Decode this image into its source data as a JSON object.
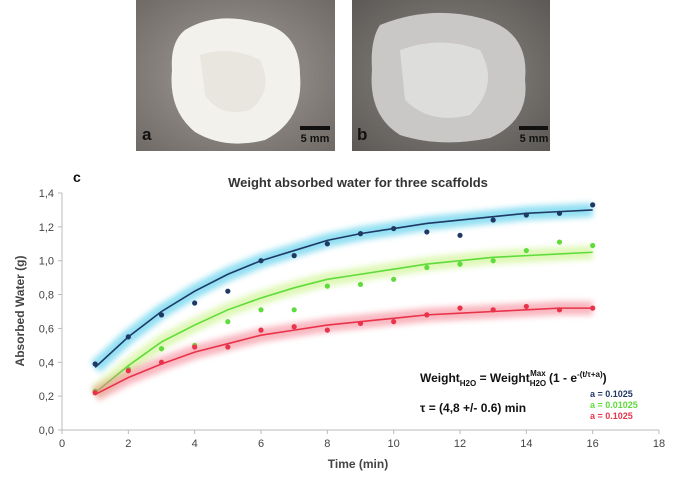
{
  "panels": [
    {
      "label": "a",
      "scale": "5 mm"
    },
    {
      "label": "b",
      "scale": "5 mm"
    }
  ],
  "chart_label": "c",
  "chart_data": {
    "type": "scatter",
    "title": "Weight absorbed water  for three scaffolds",
    "x_label": "Time  (min)",
    "y_label": "Absorbed Water (g)",
    "x": [
      1,
      2,
      3,
      4,
      5,
      6,
      7,
      8,
      9,
      10,
      11,
      12,
      13,
      14,
      15,
      16
    ],
    "series": [
      {
        "color": "#1f3864",
        "glow": "#38c6e8",
        "values": [
          0.39,
          0.55,
          0.68,
          0.75,
          0.82,
          1.0,
          1.03,
          1.1,
          1.16,
          1.19,
          1.17,
          1.15,
          1.24,
          1.27,
          1.28,
          1.33
        ],
        "fit": [
          0.37,
          0.55,
          0.7,
          0.82,
          0.92,
          1.0,
          1.06,
          1.12,
          1.16,
          1.19,
          1.22,
          1.24,
          1.26,
          1.28,
          1.29,
          1.3
        ]
      },
      {
        "color": "#5fdc3c",
        "glow": "#c4f27c",
        "values": [
          0.23,
          0.36,
          0.48,
          0.5,
          0.64,
          0.71,
          0.71,
          0.85,
          0.86,
          0.89,
          0.96,
          0.98,
          1.0,
          1.06,
          1.11,
          1.09
        ],
        "fit": [
          0.22,
          0.38,
          0.52,
          0.62,
          0.71,
          0.78,
          0.84,
          0.89,
          0.92,
          0.95,
          0.98,
          1.0,
          1.02,
          1.03,
          1.04,
          1.05
        ]
      },
      {
        "color": "#e8334a",
        "glow": "#f47c8c",
        "values": [
          0.22,
          0.35,
          0.4,
          0.49,
          0.49,
          0.59,
          0.61,
          0.59,
          0.63,
          0.64,
          0.68,
          0.72,
          0.71,
          0.73,
          0.71,
          0.72
        ],
        "fit": [
          0.21,
          0.31,
          0.39,
          0.46,
          0.51,
          0.56,
          0.59,
          0.62,
          0.64,
          0.66,
          0.68,
          0.69,
          0.7,
          0.71,
          0.72,
          0.72
        ]
      }
    ],
    "xlim": [
      0,
      18
    ],
    "xticks": [
      0,
      2,
      4,
      6,
      8,
      10,
      12,
      14,
      16,
      18
    ],
    "ylim": [
      0,
      1.4
    ],
    "yticks": [
      {
        "value": 0,
        "label": "0,0"
      },
      {
        "value": 0.2,
        "label": "0,2"
      },
      {
        "value": 0.4,
        "label": "0,4"
      },
      {
        "value": 0.6,
        "label": "0,6"
      },
      {
        "value": 0.8,
        "label": "0,8"
      },
      {
        "value": 1.0,
        "label": "1,0"
      },
      {
        "value": 1.2,
        "label": "1,2"
      },
      {
        "value": 1.4,
        "label": "1,4"
      }
    ],
    "formula": [
      "Weight",
      "H2O",
      " = Weight",
      "H2O",
      "Max",
      " (1 - e",
      "-(t/τ+a)",
      ")"
    ],
    "tau": "τ = (4,8 +/- 0.6)  min",
    "a_labels": [
      "a = 0.1025",
      "a = 0.01025",
      "a = 0.1025"
    ]
  }
}
